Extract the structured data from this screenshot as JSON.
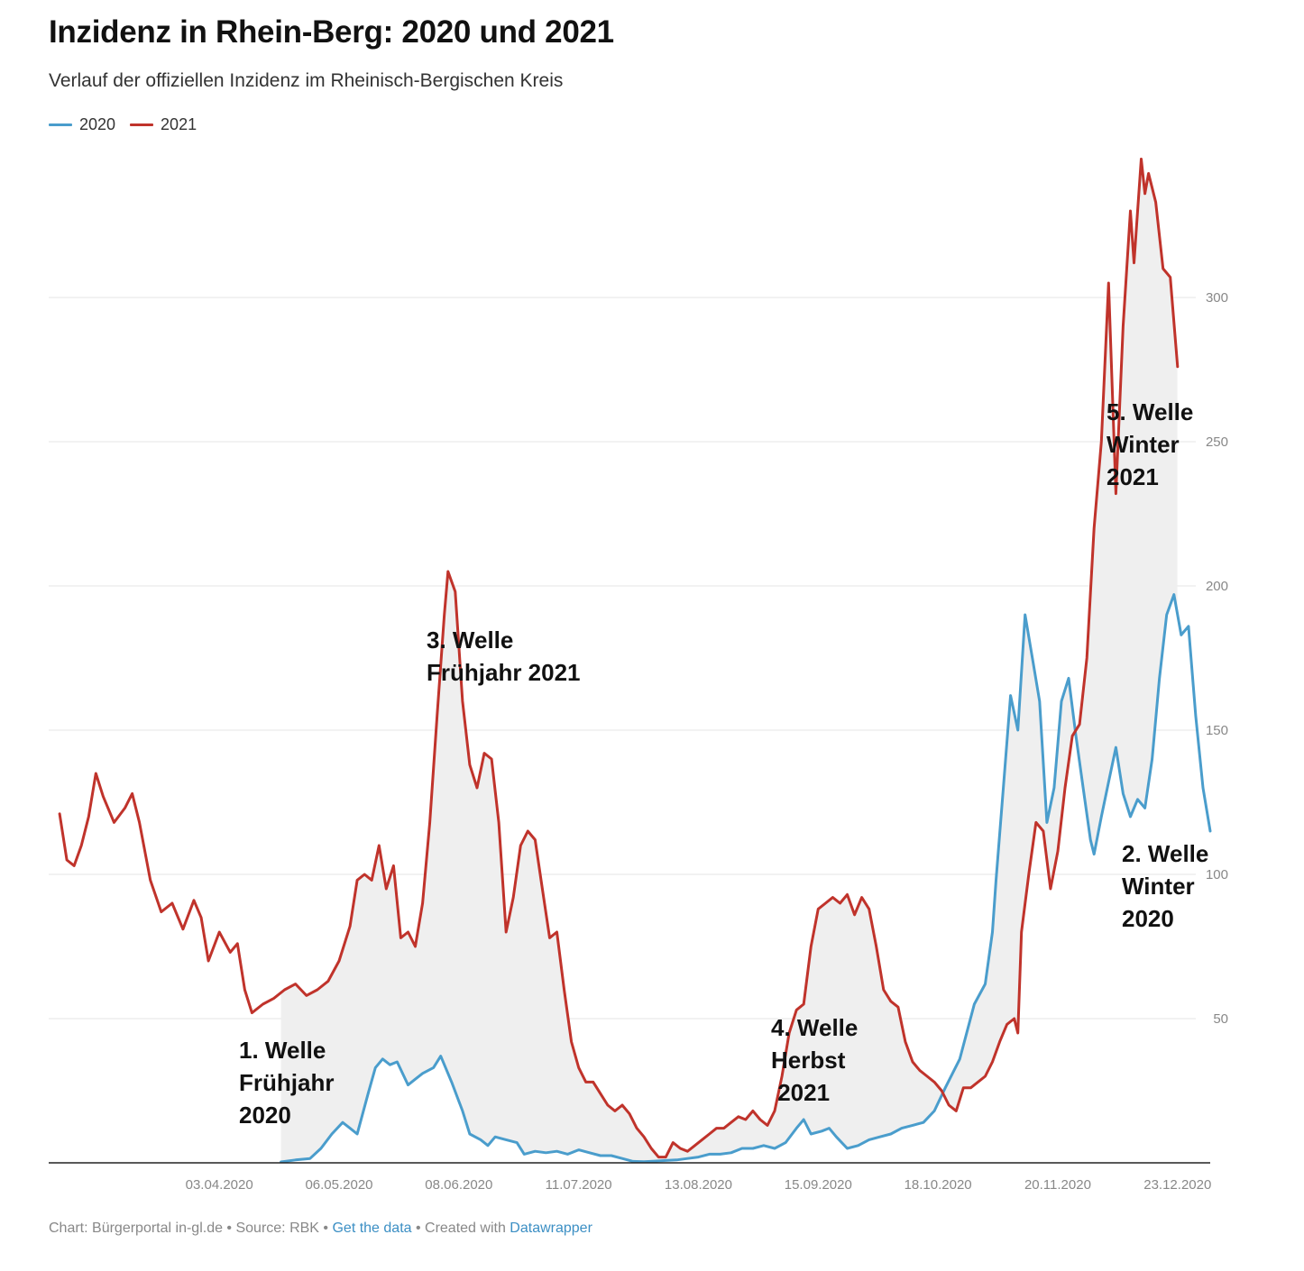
{
  "header": {
    "title": "Inzidenz in Rhein-Berg: 2020 und 2021",
    "subtitle": "Verlauf der offiziellen Inzidenz im Rheinisch-Bergischen Kreis"
  },
  "legend": [
    {
      "label": "2020",
      "color": "#4a9dcc"
    },
    {
      "label": "2021",
      "color": "#c0332b"
    }
  ],
  "annotations": [
    {
      "lines": [
        "1. Welle",
        "Frühjahr",
        "2020"
      ]
    },
    {
      "lines": [
        "3. Welle",
        "Frühjahr 2021"
      ]
    },
    {
      "lines": [
        "4. Welle",
        "Herbst",
        " 2021"
      ]
    },
    {
      "lines": [
        "5. Welle",
        "Winter",
        "2021"
      ]
    },
    {
      "lines": [
        "2. Welle",
        "Winter",
        "2020"
      ]
    }
  ],
  "footer": {
    "chart_label": "Chart: Bürgerportal in-gl.de",
    "sep1": " • ",
    "source_label": "Source: RBK",
    "sep2": " • ",
    "data_link": "Get the data",
    "sep3": " • Created with ",
    "tool_link": "Datawrapper"
  },
  "chart_data": {
    "type": "line",
    "title": "Inzidenz in Rhein-Berg: 2020 und 2021",
    "subtitle": "Verlauf der offiziellen Inzidenz im Rheinisch-Bergischen Kreis",
    "x_domain": [
      "2020-02-16",
      "2021-01-01"
    ],
    "x_ticks": [
      "03.04.2020",
      "06.05.2020",
      "08.06.2020",
      "11.07.2020",
      "13.08.2020",
      "15.09.2020",
      "18.10.2020",
      "20.11.2020",
      "23.12.2020"
    ],
    "y_ticks": [
      50,
      100,
      150,
      200,
      250,
      300
    ],
    "ylim": [
      0,
      350
    ],
    "y_axis_side": "right",
    "grid": true,
    "legend_position": "top-left",
    "fill_between": true,
    "series": [
      {
        "name": "2020",
        "color": "#4a9dcc",
        "points": [
          [
            "2020-04-20",
            0.3
          ],
          [
            "2020-04-24",
            1
          ],
          [
            "2020-04-28",
            1.5
          ],
          [
            "2020-05-01",
            5
          ],
          [
            "2020-05-04",
            10
          ],
          [
            "2020-05-07",
            14
          ],
          [
            "2020-05-09",
            12
          ],
          [
            "2020-05-11",
            10
          ],
          [
            "2020-05-14",
            24
          ],
          [
            "2020-05-16",
            33
          ],
          [
            "2020-05-18",
            36
          ],
          [
            "2020-05-20",
            34
          ],
          [
            "2020-05-22",
            35
          ],
          [
            "2020-05-25",
            27
          ],
          [
            "2020-05-27",
            29
          ],
          [
            "2020-05-29",
            31
          ],
          [
            "2020-06-01",
            33
          ],
          [
            "2020-06-03",
            37
          ],
          [
            "2020-06-06",
            28
          ],
          [
            "2020-06-09",
            18
          ],
          [
            "2020-06-11",
            10
          ],
          [
            "2020-06-14",
            8
          ],
          [
            "2020-06-16",
            6
          ],
          [
            "2020-06-18",
            9
          ],
          [
            "2020-06-21",
            8
          ],
          [
            "2020-06-24",
            7
          ],
          [
            "2020-06-26",
            3
          ],
          [
            "2020-06-29",
            4
          ],
          [
            "2020-07-02",
            3.5
          ],
          [
            "2020-07-05",
            4
          ],
          [
            "2020-07-08",
            3
          ],
          [
            "2020-07-11",
            4.5
          ],
          [
            "2020-07-14",
            3.5
          ],
          [
            "2020-07-17",
            2.5
          ],
          [
            "2020-07-20",
            2.5
          ],
          [
            "2020-07-23",
            1.5
          ],
          [
            "2020-07-26",
            0.5
          ],
          [
            "2020-07-29",
            0.4
          ],
          [
            "2020-08-01",
            0.6
          ],
          [
            "2020-08-04",
            0.8
          ],
          [
            "2020-08-07",
            1
          ],
          [
            "2020-08-10",
            1.5
          ],
          [
            "2020-08-13",
            2
          ],
          [
            "2020-08-16",
            3
          ],
          [
            "2020-08-19",
            3
          ],
          [
            "2020-08-22",
            3.5
          ],
          [
            "2020-08-25",
            5
          ],
          [
            "2020-08-28",
            5
          ],
          [
            "2020-08-31",
            6
          ],
          [
            "2020-09-03",
            5
          ],
          [
            "2020-09-06",
            7
          ],
          [
            "2020-09-09",
            12
          ],
          [
            "2020-09-11",
            15
          ],
          [
            "2020-09-13",
            10
          ],
          [
            "2020-09-16",
            11
          ],
          [
            "2020-09-18",
            12
          ],
          [
            "2020-09-20",
            9
          ],
          [
            "2020-09-23",
            5
          ],
          [
            "2020-09-26",
            6
          ],
          [
            "2020-09-29",
            8
          ],
          [
            "2020-10-02",
            9
          ],
          [
            "2020-10-05",
            10
          ],
          [
            "2020-10-08",
            12
          ],
          [
            "2020-10-11",
            13
          ],
          [
            "2020-10-14",
            14
          ],
          [
            "2020-10-17",
            18
          ],
          [
            "2020-10-20",
            26
          ],
          [
            "2020-10-24",
            36
          ],
          [
            "2020-10-28",
            55
          ],
          [
            "2020-10-31",
            62
          ],
          [
            "2020-11-02",
            80
          ],
          [
            "2020-11-03",
            98
          ],
          [
            "2020-11-05",
            130
          ],
          [
            "2020-11-07",
            162
          ],
          [
            "2020-11-09",
            150
          ],
          [
            "2020-11-11",
            190
          ],
          [
            "2020-11-13",
            175
          ],
          [
            "2020-11-15",
            160
          ],
          [
            "2020-11-17",
            118
          ],
          [
            "2020-11-19",
            130
          ],
          [
            "2020-11-21",
            160
          ],
          [
            "2020-11-23",
            168
          ],
          [
            "2020-11-25",
            148
          ],
          [
            "2020-11-27",
            130
          ],
          [
            "2020-11-29",
            112
          ],
          [
            "2020-11-30",
            107
          ],
          [
            "2020-12-02",
            120
          ],
          [
            "2020-12-04",
            132
          ],
          [
            "2020-12-06",
            144
          ],
          [
            "2020-12-08",
            128
          ],
          [
            "2020-12-10",
            120
          ],
          [
            "2020-12-12",
            126
          ],
          [
            "2020-12-14",
            123
          ],
          [
            "2020-12-16",
            140
          ],
          [
            "2020-12-18",
            168
          ],
          [
            "2020-12-20",
            190
          ],
          [
            "2020-12-22",
            197
          ],
          [
            "2020-12-24",
            183
          ],
          [
            "2020-12-26",
            186
          ],
          [
            "2020-12-28",
            155
          ],
          [
            "2020-12-30",
            130
          ],
          [
            "2021-01-01",
            115
          ]
        ]
      },
      {
        "name": "2021",
        "color": "#c0332b",
        "points": [
          [
            "2020-02-19",
            121
          ],
          [
            "2020-02-21",
            105
          ],
          [
            "2020-02-23",
            103
          ],
          [
            "2020-02-25",
            110
          ],
          [
            "2020-02-27",
            120
          ],
          [
            "2020-02-29",
            135
          ],
          [
            "2020-03-02",
            127
          ],
          [
            "2020-03-05",
            118
          ],
          [
            "2020-03-08",
            123
          ],
          [
            "2020-03-10",
            128
          ],
          [
            "2020-03-12",
            118
          ],
          [
            "2020-03-15",
            98
          ],
          [
            "2020-03-18",
            87
          ],
          [
            "2020-03-21",
            90
          ],
          [
            "2020-03-24",
            81
          ],
          [
            "2020-03-27",
            91
          ],
          [
            "2020-03-29",
            85
          ],
          [
            "2020-03-31",
            70
          ],
          [
            "2020-04-03",
            80
          ],
          [
            "2020-04-06",
            73
          ],
          [
            "2020-04-08",
            76
          ],
          [
            "2020-04-10",
            60
          ],
          [
            "2020-04-12",
            52
          ],
          [
            "2020-04-15",
            55
          ],
          [
            "2020-04-18",
            57
          ],
          [
            "2020-04-21",
            60
          ],
          [
            "2020-04-24",
            62
          ],
          [
            "2020-04-27",
            58
          ],
          [
            "2020-04-30",
            60
          ],
          [
            "2020-05-03",
            63
          ],
          [
            "2020-05-06",
            70
          ],
          [
            "2020-05-09",
            82
          ],
          [
            "2020-05-11",
            98
          ],
          [
            "2020-05-13",
            100
          ],
          [
            "2020-05-15",
            98
          ],
          [
            "2020-05-17",
            110
          ],
          [
            "2020-05-19",
            95
          ],
          [
            "2020-05-21",
            103
          ],
          [
            "2020-05-23",
            78
          ],
          [
            "2020-05-25",
            80
          ],
          [
            "2020-05-27",
            75
          ],
          [
            "2020-05-29",
            90
          ],
          [
            "2020-05-31",
            118
          ],
          [
            "2020-06-02",
            155
          ],
          [
            "2020-06-04",
            190
          ],
          [
            "2020-06-05",
            205
          ],
          [
            "2020-06-07",
            198
          ],
          [
            "2020-06-09",
            160
          ],
          [
            "2020-06-11",
            138
          ],
          [
            "2020-06-13",
            130
          ],
          [
            "2020-06-15",
            142
          ],
          [
            "2020-06-17",
            140
          ],
          [
            "2020-06-19",
            118
          ],
          [
            "2020-06-21",
            80
          ],
          [
            "2020-06-23",
            92
          ],
          [
            "2020-06-25",
            110
          ],
          [
            "2020-06-27",
            115
          ],
          [
            "2020-06-29",
            112
          ],
          [
            "2020-07-01",
            95
          ],
          [
            "2020-07-03",
            78
          ],
          [
            "2020-07-05",
            80
          ],
          [
            "2020-07-07",
            60
          ],
          [
            "2020-07-09",
            42
          ],
          [
            "2020-07-11",
            33
          ],
          [
            "2020-07-13",
            28
          ],
          [
            "2020-07-15",
            28
          ],
          [
            "2020-07-17",
            24
          ],
          [
            "2020-07-19",
            20
          ],
          [
            "2020-07-21",
            18
          ],
          [
            "2020-07-23",
            20
          ],
          [
            "2020-07-25",
            17
          ],
          [
            "2020-07-27",
            12
          ],
          [
            "2020-07-29",
            9
          ],
          [
            "2020-07-31",
            5
          ],
          [
            "2020-08-02",
            2
          ],
          [
            "2020-08-04",
            2
          ],
          [
            "2020-08-06",
            7
          ],
          [
            "2020-08-08",
            5
          ],
          [
            "2020-08-10",
            4
          ],
          [
            "2020-08-12",
            6
          ],
          [
            "2020-08-14",
            8
          ],
          [
            "2020-08-16",
            10
          ],
          [
            "2020-08-18",
            12
          ],
          [
            "2020-08-20",
            12
          ],
          [
            "2020-08-22",
            14
          ],
          [
            "2020-08-24",
            16
          ],
          [
            "2020-08-26",
            15
          ],
          [
            "2020-08-28",
            18
          ],
          [
            "2020-08-30",
            15
          ],
          [
            "2020-09-01",
            13
          ],
          [
            "2020-09-03",
            18
          ],
          [
            "2020-09-05",
            30
          ],
          [
            "2020-09-07",
            45
          ],
          [
            "2020-09-09",
            53
          ],
          [
            "2020-09-11",
            55
          ],
          [
            "2020-09-13",
            75
          ],
          [
            "2020-09-15",
            88
          ],
          [
            "2020-09-17",
            90
          ],
          [
            "2020-09-19",
            92
          ],
          [
            "2020-09-21",
            90
          ],
          [
            "2020-09-23",
            93
          ],
          [
            "2020-09-25",
            86
          ],
          [
            "2020-09-27",
            92
          ],
          [
            "2020-09-29",
            88
          ],
          [
            "2020-10-01",
            75
          ],
          [
            "2020-10-03",
            60
          ],
          [
            "2020-10-05",
            56
          ],
          [
            "2020-10-07",
            54
          ],
          [
            "2020-10-09",
            42
          ],
          [
            "2020-10-11",
            35
          ],
          [
            "2020-10-13",
            32
          ],
          [
            "2020-10-15",
            30
          ],
          [
            "2020-10-17",
            28
          ],
          [
            "2020-10-19",
            25
          ],
          [
            "2020-10-21",
            20
          ],
          [
            "2020-10-23",
            18
          ],
          [
            "2020-10-25",
            26
          ],
          [
            "2020-10-27",
            26
          ],
          [
            "2020-10-29",
            28
          ],
          [
            "2020-10-31",
            30
          ],
          [
            "2020-11-02",
            35
          ],
          [
            "2020-11-04",
            42
          ],
          [
            "2020-11-06",
            48
          ],
          [
            "2020-11-08",
            50
          ],
          [
            "2020-11-09",
            45
          ],
          [
            "2020-11-10",
            80
          ],
          [
            "2020-11-12",
            100
          ],
          [
            "2020-11-14",
            118
          ],
          [
            "2020-11-16",
            115
          ],
          [
            "2020-11-18",
            95
          ],
          [
            "2020-11-20",
            108
          ],
          [
            "2020-11-22",
            130
          ],
          [
            "2020-11-24",
            148
          ],
          [
            "2020-11-26",
            152
          ],
          [
            "2020-11-28",
            175
          ],
          [
            "2020-11-30",
            220
          ],
          [
            "2020-12-02",
            250
          ],
          [
            "2020-12-04",
            305
          ],
          [
            "2020-12-06",
            232
          ],
          [
            "2020-12-08",
            290
          ],
          [
            "2020-12-10",
            330
          ],
          [
            "2020-12-11",
            312
          ],
          [
            "2020-12-13",
            348
          ],
          [
            "2020-12-14",
            336
          ],
          [
            "2020-12-15",
            343
          ],
          [
            "2020-12-17",
            333
          ],
          [
            "2020-12-19",
            310
          ],
          [
            "2020-12-21",
            307
          ],
          [
            "2020-12-23",
            276
          ]
        ]
      }
    ]
  }
}
